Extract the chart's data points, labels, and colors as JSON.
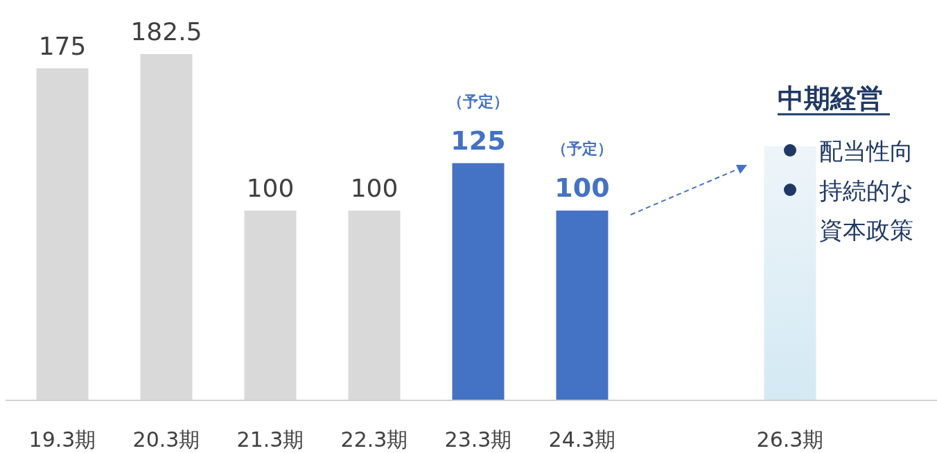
{
  "chart_data": {
    "type": "bar",
    "categories": [
      "19.3期",
      "20.3期",
      "21.3期",
      "22.3期",
      "23.3期",
      "24.3期",
      null,
      "26.3期"
    ],
    "values": [
      175,
      182.5,
      100,
      100,
      125,
      100,
      null,
      134
    ],
    "colors": [
      "#d9d9d9",
      "#d9d9d9",
      "#d9d9d9",
      "#d9d9d9",
      "#4472c4",
      "#4472c4",
      null,
      "#d3e9f3"
    ],
    "value_labels": [
      "175",
      "182.5",
      "100",
      "100",
      "125",
      "100",
      null,
      null
    ],
    "annotations": [
      "（予定）",
      "（予定）",
      "中期経営",
      "配当性向",
      "持続的な",
      "資本政策"
    ]
  }
}
